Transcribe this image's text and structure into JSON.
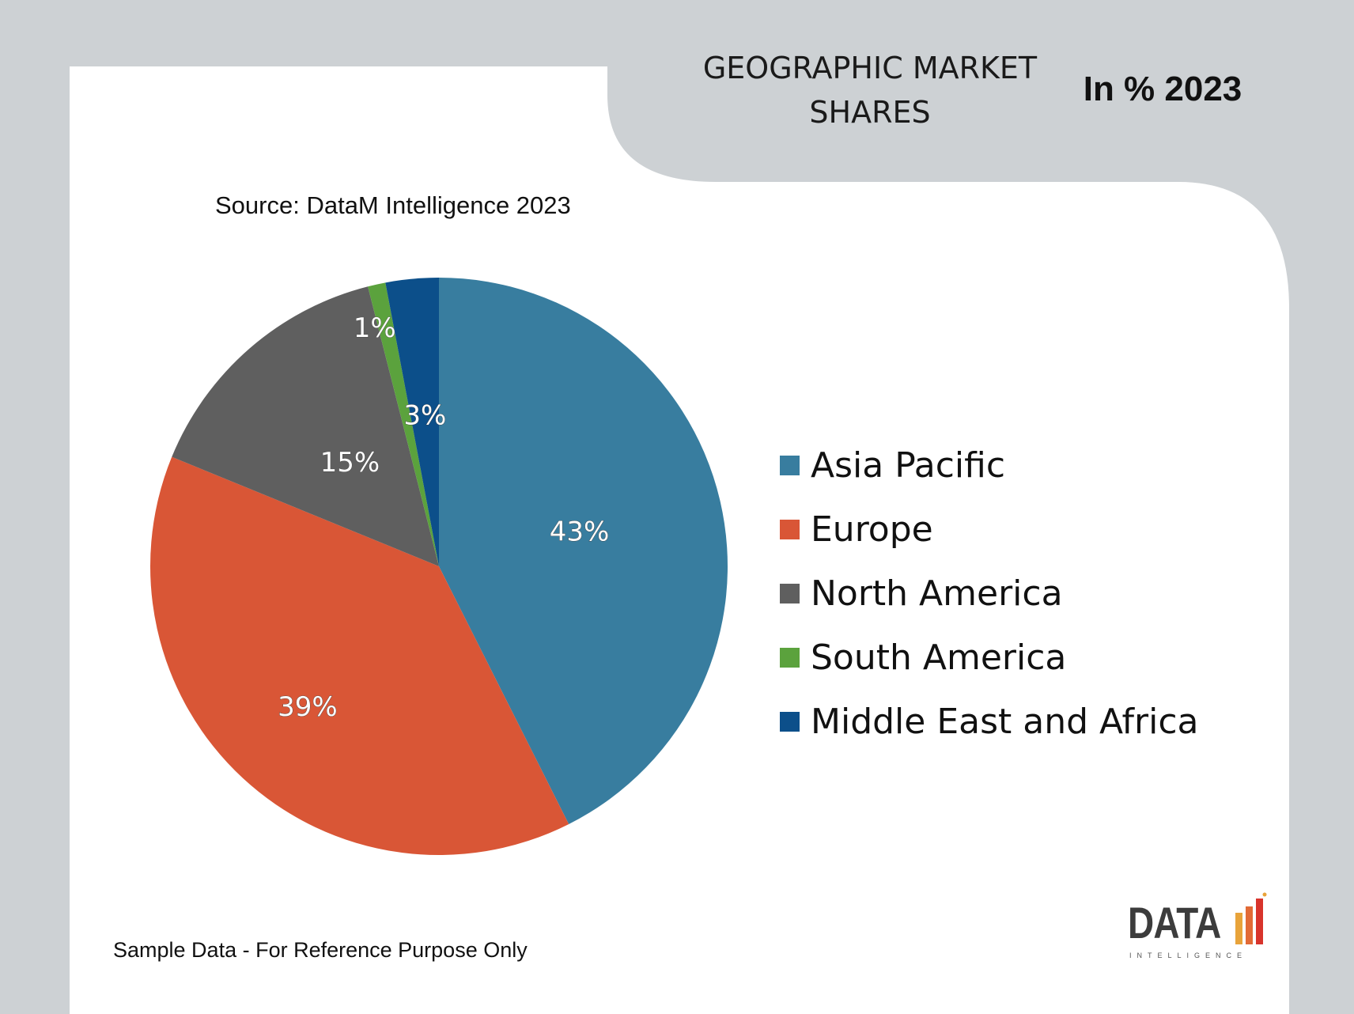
{
  "header": {
    "title_lines": [
      "GEOGRAPHIC MARKET",
      "SHARES"
    ],
    "unit_label": "In % 2023"
  },
  "source": "Source: DataM Intelligence 2023",
  "footer_note": "Sample Data - For Reference Purpose Only",
  "logo": {
    "word": "DATA",
    "subtitle": "INTELLIGENCE",
    "bar_colors": [
      "#e8a33a",
      "#e26a36",
      "#d8342c"
    ]
  },
  "colors": {
    "background": "#cdd1d4",
    "panel": "#ffffff"
  },
  "chart_data": {
    "type": "pie",
    "title": "GEOGRAPHIC MARKET SHARES",
    "subtitle": "In % 2023",
    "start": "12 o'clock, clockwise",
    "legend_position": "right",
    "slices": [
      {
        "name": "Asia Pacific",
        "value": 43,
        "label": "43%",
        "color": "#387d9f"
      },
      {
        "name": "Europe",
        "value": 39,
        "label": "39%",
        "color": "#d95636"
      },
      {
        "name": "North America",
        "value": 15,
        "label": "15%",
        "color": "#5f5f5f"
      },
      {
        "name": "South America",
        "value": 1,
        "label": "1%",
        "color": "#5ba23d"
      },
      {
        "name": "Middle East and Africa",
        "value": 3,
        "label": "3%",
        "color": "#0c4f8a"
      }
    ]
  }
}
